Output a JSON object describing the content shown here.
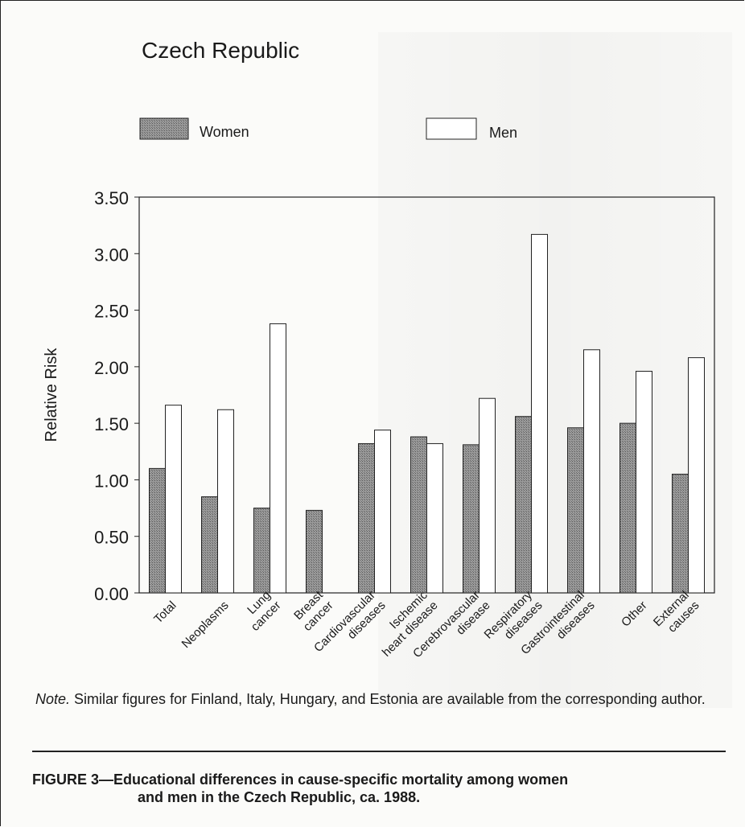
{
  "chart_data": {
    "type": "bar",
    "title": "Czech Republic",
    "ylabel": "Relative Risk",
    "xlabel": "",
    "ylim": [
      0,
      3.5
    ],
    "yticks": [
      "0.00",
      "0.50",
      "1.00",
      "1.50",
      "2.00",
      "2.50",
      "3.00",
      "3.50"
    ],
    "categories": [
      [
        "Total"
      ],
      [
        "Neoplasms"
      ],
      [
        "Lung",
        "cancer"
      ],
      [
        "Breast",
        "cancer"
      ],
      [
        "Cardiovascular",
        "diseases"
      ],
      [
        "Ischemic",
        "heart disease"
      ],
      [
        "Cerebrovascular",
        "disease"
      ],
      [
        "Respiratory",
        "diseases"
      ],
      [
        "Gastrointestinal",
        "diseases"
      ],
      [
        "Other"
      ],
      [
        "External",
        "causes"
      ]
    ],
    "series": [
      {
        "name": "Women",
        "values": [
          1.1,
          0.85,
          0.75,
          0.73,
          1.32,
          1.38,
          1.31,
          1.56,
          1.46,
          1.5,
          1.05
        ],
        "color": "#8c8c8c"
      },
      {
        "name": "Men",
        "values": [
          1.66,
          1.62,
          2.38,
          null,
          1.44,
          1.32,
          1.72,
          3.17,
          2.15,
          1.96,
          2.08
        ],
        "color": "#ffffff"
      }
    ],
    "grid": false,
    "legend": "top"
  },
  "note": {
    "prefix": "Note.",
    "text": " Similar figures for Finland, Italy, Hungary, and Estonia are available from the corresponding author."
  },
  "caption": {
    "line1": "FIGURE 3—Educational differences in cause-specific mortality among women",
    "line2": "and men in the Czech Republic, ca. 1988."
  }
}
